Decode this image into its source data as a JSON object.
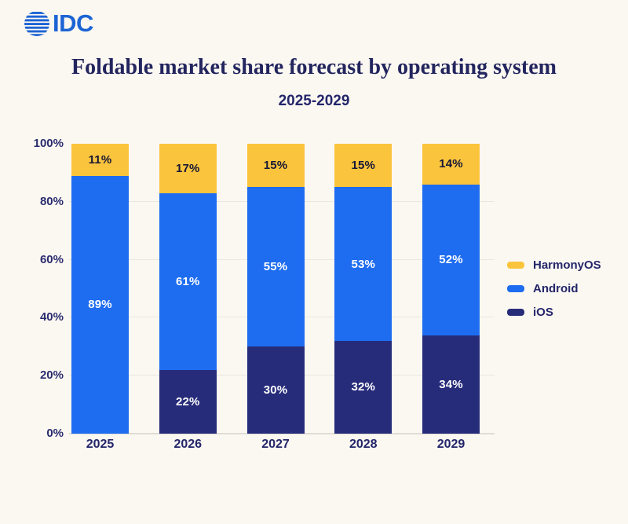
{
  "brand": {
    "logo_text": "IDC"
  },
  "header": {
    "title": "Foldable market share forecast by operating system",
    "subtitle": "2025-2029"
  },
  "chart_data": {
    "type": "bar",
    "stacked": true,
    "title": "Foldable market share forecast by operating system",
    "subtitle": "2025-2029",
    "categories": [
      "2025",
      "2026",
      "2027",
      "2028",
      "2029"
    ],
    "series": [
      {
        "name": "iOS",
        "color": "#262C7A",
        "label_color": "#FFFFFF",
        "values": [
          0,
          22,
          30,
          32,
          34
        ]
      },
      {
        "name": "Android",
        "color": "#1E6CF0",
        "label_color": "#FFFFFF",
        "values": [
          89,
          61,
          55,
          53,
          52
        ]
      },
      {
        "name": "HarmonyOS",
        "color": "#FBC43D",
        "label_color": "#171735",
        "values": [
          11,
          17,
          15,
          15,
          14
        ]
      }
    ],
    "value_suffix": "%",
    "ylim": [
      0,
      100
    ],
    "y_ticks": [
      {
        "value": 0,
        "label": "0%"
      },
      {
        "value": 20,
        "label": "20%"
      },
      {
        "value": 40,
        "label": "40%"
      },
      {
        "value": 60,
        "label": "60%"
      },
      {
        "value": 80,
        "label": "80%"
      },
      {
        "value": 100,
        "label": "100%"
      }
    ],
    "gridline_values": [
      20,
      40,
      60,
      80
    ],
    "grid": true,
    "legend_position": "right",
    "legend": [
      {
        "label": "HarmonyOS",
        "color": "#FBC43D"
      },
      {
        "label": "Android",
        "color": "#1E6CF0"
      },
      {
        "label": "iOS",
        "color": "#262C7A"
      }
    ]
  },
  "colors": {
    "background": "#FBF8F2",
    "text_navy": "#23255E",
    "logo_blue": "#1C64D4",
    "gridline": "#E9E7E1",
    "baseline": "#DFDDD6"
  }
}
